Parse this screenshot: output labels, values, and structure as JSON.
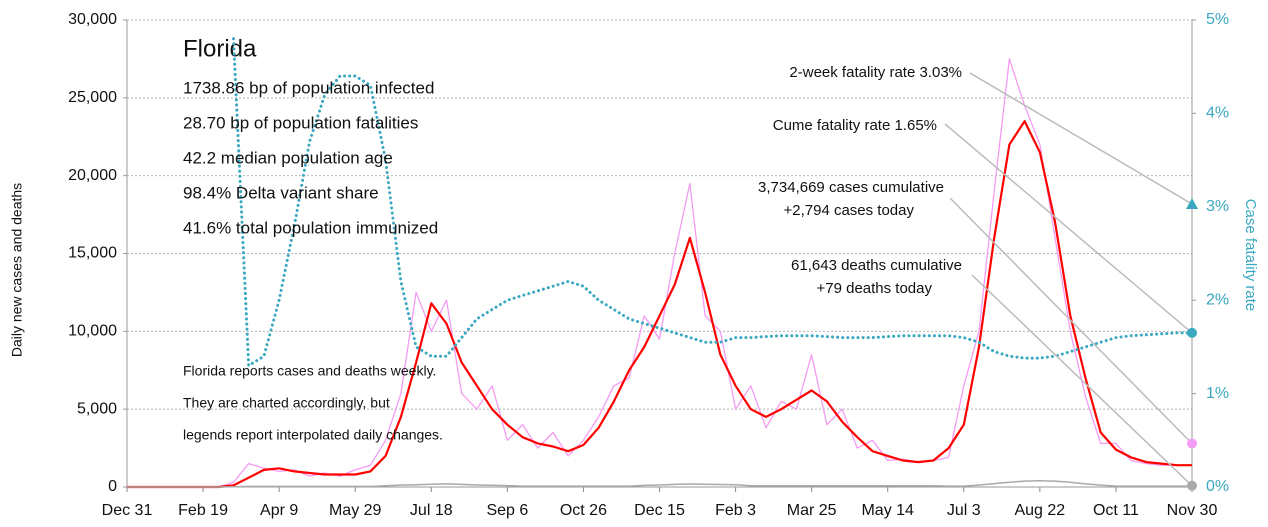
{
  "chart_data": {
    "type": "line",
    "title": "Florida",
    "info_lines": [
      "1738.86 bp of population infected",
      "28.70 bp of population fatalities",
      "42.2 median population age",
      "98.4% Delta variant share",
      "41.6% total population immunized"
    ],
    "note_lines": [
      "Florida reports cases and deaths weekly.",
      "They are charted accordingly, but",
      "legends report interpolated daily changes."
    ],
    "y_label": "Daily new cases and deaths",
    "y2_label": "Case fatality rate",
    "xlim": [
      0,
      700
    ],
    "xticks": [
      {
        "value": 0,
        "label": "Dec 31"
      },
      {
        "value": 50,
        "label": "Feb 19"
      },
      {
        "value": 100,
        "label": "Apr 9"
      },
      {
        "value": 150,
        "label": "May 29"
      },
      {
        "value": 200,
        "label": "Jul 18"
      },
      {
        "value": 250,
        "label": "Sep 6"
      },
      {
        "value": 300,
        "label": "Oct 26"
      },
      {
        "value": 350,
        "label": "Dec 15"
      },
      {
        "value": 400,
        "label": "Feb 3"
      },
      {
        "value": 450,
        "label": "Mar 25"
      },
      {
        "value": 500,
        "label": "May 14"
      },
      {
        "value": 550,
        "label": "Jul 3"
      },
      {
        "value": 600,
        "label": "Aug 22"
      },
      {
        "value": 650,
        "label": "Oct 11"
      },
      {
        "value": 700,
        "label": "Nov 30"
      }
    ],
    "ylim": [
      0,
      30000
    ],
    "yticks": [
      0,
      {
        "value": 5000,
        "label": "5,000"
      },
      {
        "value": 10000,
        "label": "10,000"
      },
      {
        "value": 15000,
        "label": "15,000"
      },
      {
        "value": 20000,
        "label": "20,000"
      },
      {
        "value": 25000,
        "label": "25,000"
      },
      {
        "value": 30000,
        "label": "30,000"
      }
    ],
    "y2lim": [
      0,
      5
    ],
    "y2ticks": [
      {
        "value": 0,
        "label": "0%"
      },
      {
        "value": 1,
        "label": "1%"
      },
      {
        "value": 2,
        "label": "2%"
      },
      {
        "value": 3,
        "label": "3%"
      },
      {
        "value": 4,
        "label": "4%"
      },
      {
        "value": 5,
        "label": "5%"
      }
    ],
    "grid": true,
    "x": [
      0,
      10,
      20,
      30,
      40,
      50,
      60,
      70,
      80,
      90,
      100,
      110,
      120,
      130,
      140,
      150,
      160,
      170,
      180,
      190,
      200,
      210,
      220,
      230,
      240,
      250,
      260,
      270,
      280,
      290,
      300,
      310,
      320,
      330,
      340,
      350,
      360,
      370,
      380,
      390,
      400,
      410,
      420,
      430,
      440,
      450,
      460,
      470,
      480,
      490,
      500,
      510,
      520,
      530,
      540,
      550,
      560,
      570,
      580,
      590,
      600,
      610,
      620,
      630,
      640,
      650,
      660,
      670,
      680,
      690,
      700
    ],
    "series": [
      {
        "color": "#f49bf4",
        "width": 1.3,
        "values": [
          0,
          0,
          0,
          0,
          0,
          0,
          0,
          300,
          1500,
          1200,
          1000,
          1100,
          700,
          900,
          700,
          1100,
          1400,
          3000,
          6000,
          12500,
          10000,
          12000,
          6000,
          5000,
          6500,
          3000,
          4000,
          2500,
          3500,
          2000,
          3000,
          4500,
          6500,
          7000,
          11000,
          9500,
          15000,
          19500,
          11000,
          10000,
          5000,
          6500,
          3800,
          5500,
          5000,
          8500,
          4000,
          5000,
          2500,
          3000,
          1700,
          1800,
          1600,
          1700,
          1900,
          6500,
          10000,
          19000,
          27500,
          24500,
          22000,
          16000,
          10000,
          5800,
          2800,
          2800,
          1700,
          1500,
          1400,
          1400,
          1400
        ]
      },
      {
        "color": "#ff0000",
        "width": 2.2,
        "values": [
          0,
          0,
          0,
          0,
          0,
          0,
          0,
          100,
          600,
          1100,
          1200,
          1000,
          900,
          800,
          800,
          800,
          1000,
          2000,
          4500,
          8000,
          11800,
          10500,
          8000,
          6500,
          5000,
          4000,
          3200,
          2800,
          2600,
          2300,
          2700,
          3800,
          5500,
          7500,
          9000,
          11000,
          13000,
          16000,
          12500,
          8500,
          6500,
          5000,
          4500,
          5000,
          5600,
          6200,
          5500,
          4200,
          3200,
          2300,
          2000,
          1700,
          1600,
          1700,
          2500,
          4000,
          9000,
          16000,
          22000,
          23500,
          21500,
          17000,
          11000,
          7000,
          3500,
          2400,
          1900,
          1600,
          1500,
          1400,
          1400
        ]
      },
      {
        "color": "#aaaaaa",
        "width": 1.5,
        "values": [
          0,
          0,
          0,
          0,
          0,
          0,
          0,
          10,
          40,
          40,
          40,
          40,
          40,
          40,
          40,
          40,
          40,
          80,
          120,
          150,
          180,
          200,
          170,
          130,
          110,
          90,
          60,
          60,
          60,
          60,
          60,
          60,
          60,
          60,
          100,
          130,
          170,
          190,
          180,
          160,
          140,
          80,
          80,
          80,
          80,
          80,
          80,
          80,
          80,
          80,
          80,
          80,
          80,
          80,
          60,
          60,
          120,
          220,
          300,
          380,
          400,
          380,
          300,
          200,
          120,
          60,
          60,
          60,
          60,
          60,
          60
        ]
      },
      {
        "color": "#3aa8c1",
        "width": 3,
        "dash": "dotted",
        "axis": "y2",
        "values": [
          null,
          null,
          null,
          null,
          null,
          null,
          null,
          4.8,
          1.3,
          1.4,
          2.0,
          2.8,
          3.7,
          4.2,
          4.4,
          4.4,
          4.3,
          3.5,
          2.2,
          1.5,
          1.4,
          1.4,
          1.6,
          1.8,
          1.9,
          2.0,
          2.05,
          2.1,
          2.15,
          2.2,
          2.15,
          2.0,
          1.9,
          1.8,
          1.75,
          1.7,
          1.65,
          1.6,
          1.55,
          1.55,
          1.6,
          1.6,
          1.61,
          1.62,
          1.62,
          1.62,
          1.61,
          1.6,
          1.6,
          1.6,
          1.61,
          1.62,
          1.62,
          1.62,
          1.62,
          1.6,
          1.55,
          1.45,
          1.4,
          1.38,
          1.38,
          1.4,
          1.45,
          1.5,
          1.55,
          1.6,
          1.62,
          1.63,
          1.64,
          1.65,
          1.65
        ]
      }
    ],
    "markers": [
      {
        "lines": [
          "2-week fatality rate 3.03%"
        ],
        "value": 3.03,
        "axis": "y2",
        "shape": "triangle",
        "color": "#3aa8c1"
      },
      {
        "lines": [
          "Cume fatality rate 1.65%"
        ],
        "value": 1.65,
        "axis": "y2",
        "shape": "circle",
        "color": "#3aa8c1"
      },
      {
        "lines": [
          "3,734,669 cases cumulative",
          "+2,794 cases today"
        ],
        "value": 2794,
        "shape": "circle",
        "color": "#f49bf4"
      },
      {
        "lines": [
          "61,643 deaths cumulative",
          "+79 deaths today"
        ],
        "value": 79,
        "shape": "circle",
        "color": "#aaaaaa"
      }
    ]
  }
}
